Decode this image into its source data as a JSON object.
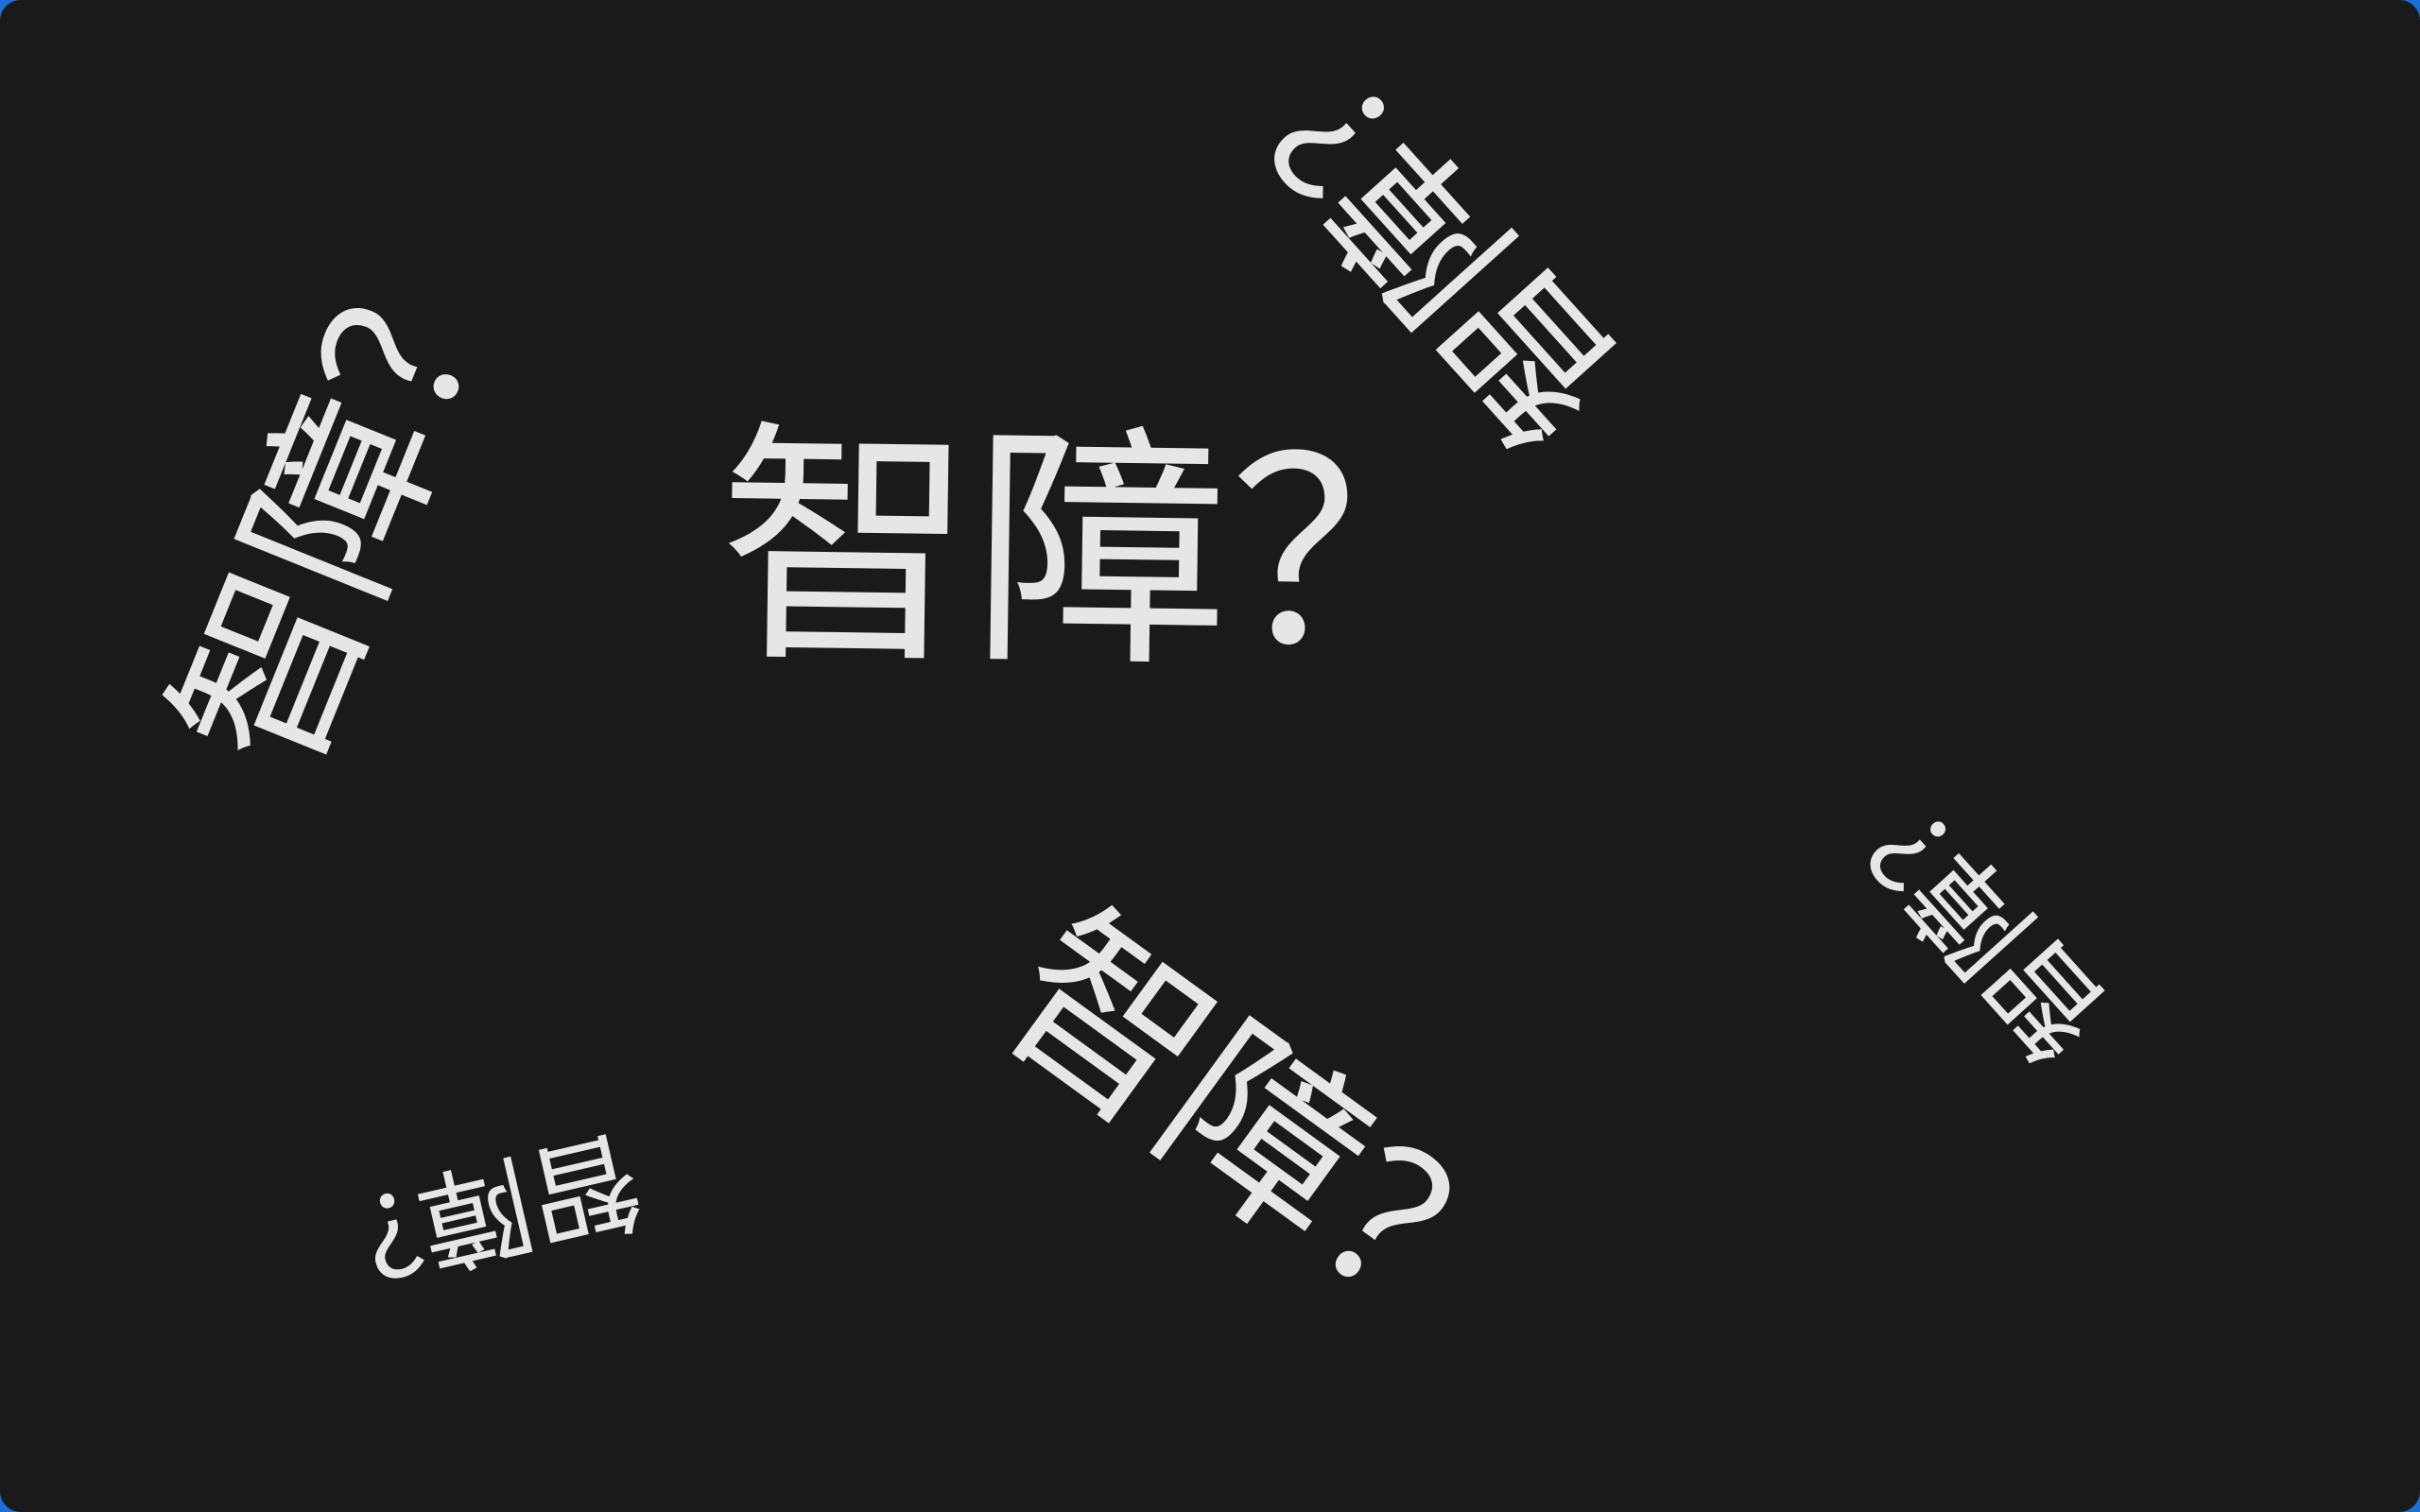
{
  "phrase": "智障？",
  "words": [
    {
      "id": "center",
      "text": "智障？"
    },
    {
      "id": "left",
      "text": "智障？"
    },
    {
      "id": "top-right",
      "text": "智障？"
    },
    {
      "id": "bottom",
      "text": "智障？"
    },
    {
      "id": "right",
      "text": "智障？"
    },
    {
      "id": "bottom-left",
      "text": "智障？"
    }
  ],
  "colors": {
    "background": "#1a1a1a",
    "text": "#e6e6e6",
    "frame_edge": "#1c6fd6"
  }
}
